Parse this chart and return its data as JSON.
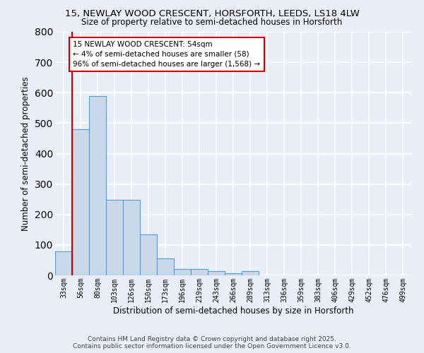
{
  "title_line1": "15, NEWLAY WOOD CRESCENT, HORSFORTH, LEEDS, LS18 4LW",
  "title_line2": "Size of property relative to semi-detached houses in Horsforth",
  "xlabel": "Distribution of semi-detached houses by size in Horsforth",
  "ylabel": "Number of semi-detached properties",
  "categories": [
    "33sqm",
    "56sqm",
    "80sqm",
    "103sqm",
    "126sqm",
    "150sqm",
    "173sqm",
    "196sqm",
    "219sqm",
    "243sqm",
    "266sqm",
    "289sqm",
    "313sqm",
    "336sqm",
    "359sqm",
    "383sqm",
    "406sqm",
    "429sqm",
    "452sqm",
    "476sqm",
    "499sqm"
  ],
  "values": [
    80,
    480,
    590,
    248,
    248,
    135,
    55,
    22,
    22,
    14,
    8,
    15,
    0,
    0,
    0,
    0,
    0,
    0,
    0,
    0,
    0
  ],
  "bar_color": "#c9d9e8",
  "bar_edge_color": "#5b9bd5",
  "vline_pos": 0.5,
  "annotation_text": "15 NEWLAY WOOD CRESCENT: 54sqm\n← 4% of semi-detached houses are smaller (58)\n96% of semi-detached houses are larger (1,568) →",
  "annotation_box_color": "#ffffff",
  "annotation_box_edge": "#cc0000",
  "vline_color": "#cc0000",
  "ylim": [
    0,
    800
  ],
  "yticks": [
    0,
    100,
    200,
    300,
    400,
    500,
    600,
    700,
    800
  ],
  "footer_line1": "Contains HM Land Registry data © Crown copyright and database right 2025.",
  "footer_line2": "Contains public sector information licensed under the Open Government Licence v3.0.",
  "bg_color": "#eaeff7",
  "plot_bg_color": "#eaeff7",
  "grid_color": "#ffffff"
}
